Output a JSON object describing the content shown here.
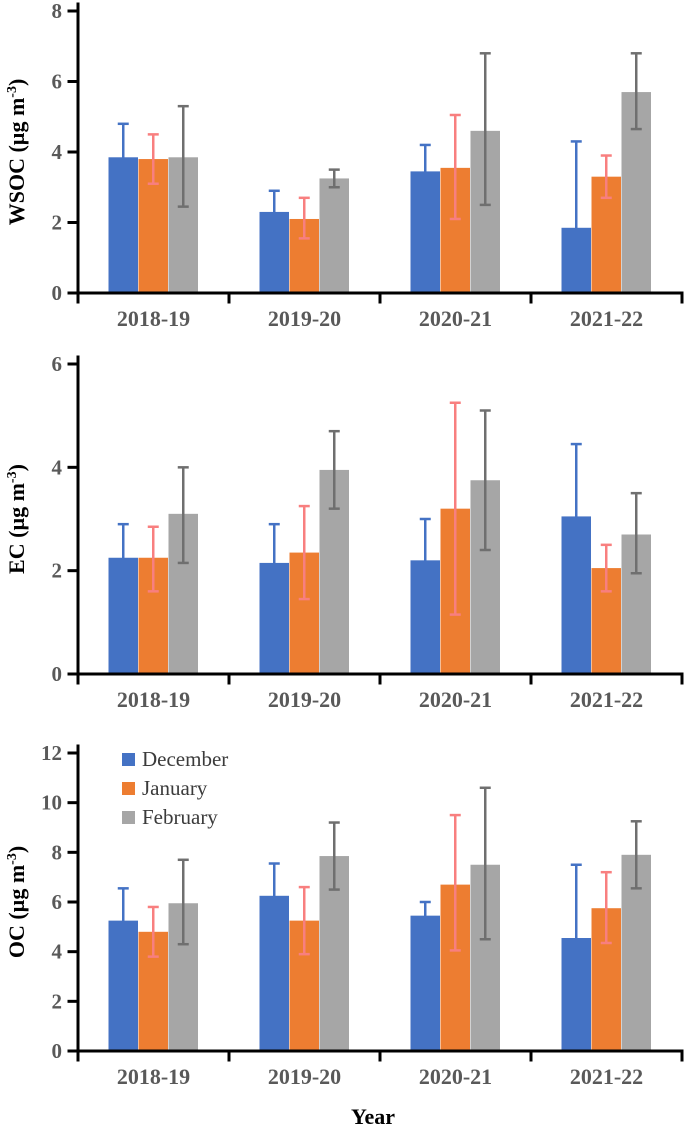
{
  "figure": {
    "xlabel": "Year",
    "categories": [
      "2018-19",
      "2019-20",
      "2020-21",
      "2021-22"
    ],
    "legend_entries": [
      "December",
      "January",
      "February"
    ],
    "colors": {
      "december_bar": "#4472C4",
      "january_bar": "#ED7D31",
      "february_bar": "#A6A6A6",
      "december_error": "#4472C4",
      "january_error": "#F87F7F",
      "february_error": "#6F6F6F",
      "axis": "#000000",
      "tick_text": "#595959"
    }
  },
  "chart_data": [
    {
      "id": "wsoc",
      "type": "bar",
      "title": "",
      "ylabel": "WSOC (µg m⁻³)",
      "xlabel": "",
      "ylim": [
        0,
        8
      ],
      "yticks": [
        0,
        2,
        4,
        6,
        8
      ],
      "grid": false,
      "show_legend": false,
      "categories": [
        "2018-19",
        "2019-20",
        "2020-21",
        "2021-22"
      ],
      "series": [
        {
          "name": "December",
          "color": "#4472C4",
          "error_color": "#4472C4",
          "values": [
            3.85,
            2.3,
            3.45,
            1.85
          ],
          "err_low": [
            2.95,
            1.8,
            2.7,
            0.1
          ],
          "err_high": [
            4.8,
            2.9,
            4.2,
            4.3
          ]
        },
        {
          "name": "January",
          "color": "#ED7D31",
          "error_color": "#F87F7F",
          "values": [
            3.8,
            2.1,
            3.55,
            3.3
          ],
          "err_low": [
            3.1,
            1.55,
            2.1,
            2.7
          ],
          "err_high": [
            4.5,
            2.7,
            5.05,
            3.9
          ]
        },
        {
          "name": "February",
          "color": "#A6A6A6",
          "error_color": "#6F6F6F",
          "values": [
            3.85,
            3.25,
            4.6,
            5.7
          ],
          "err_low": [
            2.45,
            3.0,
            2.5,
            4.65
          ],
          "err_high": [
            5.3,
            3.5,
            6.8,
            6.8
          ]
        }
      ]
    },
    {
      "id": "ec",
      "type": "bar",
      "title": "",
      "ylabel": "EC (µg m⁻³)",
      "xlabel": "",
      "ylim": [
        0,
        6
      ],
      "yticks": [
        0,
        2,
        4,
        6
      ],
      "grid": false,
      "show_legend": false,
      "categories": [
        "2018-19",
        "2019-20",
        "2020-21",
        "2021-22"
      ],
      "series": [
        {
          "name": "December",
          "color": "#4472C4",
          "error_color": "#4472C4",
          "values": [
            2.25,
            2.15,
            2.2,
            3.05
          ],
          "err_low": [
            1.55,
            1.4,
            1.35,
            1.75
          ],
          "err_high": [
            2.9,
            2.9,
            3.0,
            4.45
          ]
        },
        {
          "name": "January",
          "color": "#ED7D31",
          "error_color": "#F87F7F",
          "values": [
            2.25,
            2.35,
            3.2,
            2.05
          ],
          "err_low": [
            1.6,
            1.45,
            1.15,
            1.6
          ],
          "err_high": [
            2.85,
            3.25,
            5.25,
            2.5
          ]
        },
        {
          "name": "February",
          "color": "#A6A6A6",
          "error_color": "#6F6F6F",
          "values": [
            3.1,
            3.95,
            3.75,
            2.7
          ],
          "err_low": [
            2.15,
            3.2,
            2.4,
            1.95
          ],
          "err_high": [
            4.0,
            4.7,
            5.1,
            3.5
          ]
        }
      ]
    },
    {
      "id": "oc",
      "type": "bar",
      "title": "",
      "ylabel": "OC (µg m⁻³)",
      "xlabel": "Year",
      "ylim": [
        0,
        12
      ],
      "yticks": [
        0,
        2,
        4,
        6,
        8,
        10,
        12
      ],
      "grid": false,
      "show_legend": true,
      "legend_position": "top-left",
      "categories": [
        "2018-19",
        "2019-20",
        "2020-21",
        "2021-22"
      ],
      "series": [
        {
          "name": "December",
          "color": "#4472C4",
          "error_color": "#4472C4",
          "values": [
            5.25,
            6.25,
            5.45,
            4.55
          ],
          "err_low": [
            4.0,
            5.0,
            4.9,
            1.65
          ],
          "err_high": [
            6.55,
            7.55,
            6.0,
            7.5
          ]
        },
        {
          "name": "January",
          "color": "#ED7D31",
          "error_color": "#F87F7F",
          "values": [
            4.8,
            5.25,
            6.7,
            5.75
          ],
          "err_low": [
            3.8,
            3.9,
            4.05,
            4.35
          ],
          "err_high": [
            5.8,
            6.6,
            9.5,
            7.2
          ]
        },
        {
          "name": "February",
          "color": "#A6A6A6",
          "error_color": "#6F6F6F",
          "values": [
            5.95,
            7.85,
            7.5,
            7.9
          ],
          "err_low": [
            4.3,
            6.5,
            4.5,
            6.55
          ],
          "err_high": [
            7.7,
            9.2,
            10.6,
            9.25
          ]
        }
      ]
    }
  ]
}
